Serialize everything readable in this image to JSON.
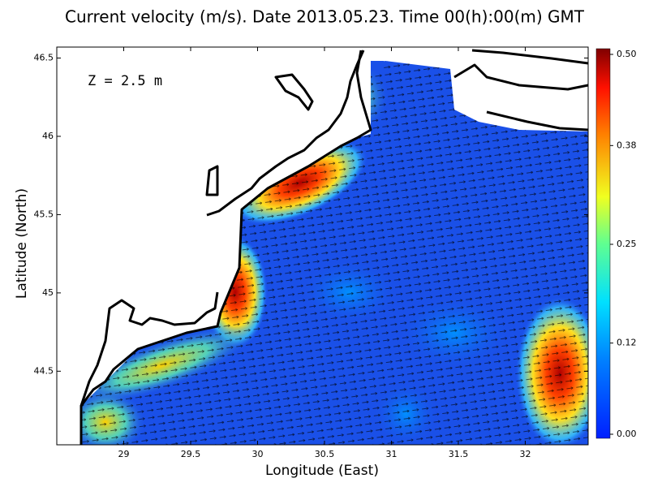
{
  "chart_data": {
    "type": "map",
    "title": "Current velocity (m/s). Date 2013.05.23. Time 00(h):00(m) GMT",
    "annotation": "Z = 2.5 m",
    "x_label": "Longitude (East)",
    "y_label": "Latitude (North)",
    "xlim": [
      28.5,
      32.47
    ],
    "ylim": [
      44.03,
      46.57
    ],
    "xticks": [
      29,
      29.5,
      30,
      30.5,
      31,
      31.5,
      32
    ],
    "yticks": [
      44.5,
      45,
      45.5,
      46,
      46.5
    ],
    "colorbar": {
      "lim": [
        0,
        0.5
      ],
      "ticks": [
        {
          "value": 0,
          "label": "0.00"
        },
        {
          "value": 0.12,
          "label": "0.12"
        },
        0.25,
        {
          "value": 0.38,
          "label": "0.38"
        },
        {
          "value": 0.5,
          "label": "0.50"
        }
      ]
    }
  }
}
